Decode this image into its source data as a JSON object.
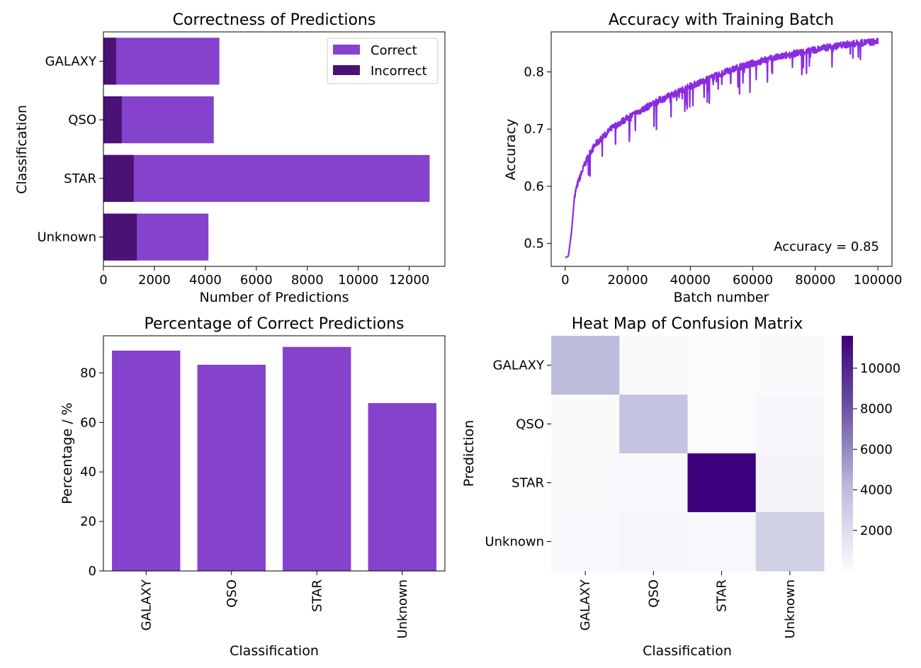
{
  "colors": {
    "correct": "#8542cc",
    "incorrect": "#4b1175",
    "line": "#8a2be2",
    "heat_low": "#fcfbfd",
    "heat_high": "#3f007d"
  },
  "chart_data": [
    {
      "type": "bar",
      "orientation": "horizontal",
      "stacked": "overlay",
      "title": "Correctness of Predictions",
      "xlabel": "Number of Predictions",
      "ylabel": "Classification",
      "categories": [
        "GALAXY",
        "QSO",
        "STAR",
        "Unknown"
      ],
      "series": [
        {
          "name": "Correct",
          "values": [
            4550,
            4330,
            12800,
            4120
          ]
        },
        {
          "name": "Incorrect",
          "values": [
            500,
            720,
            1190,
            1310
          ]
        }
      ],
      "xlim": [
        0,
        13400
      ],
      "xticks": [
        0,
        2000,
        4000,
        6000,
        8000,
        10000,
        12000
      ],
      "legend": "top-right",
      "grid": false
    },
    {
      "type": "line",
      "title": "Accuracy with Training Batch",
      "xlabel": "Batch number",
      "ylabel": "Accuracy",
      "x": [
        0,
        1000,
        2000,
        3000,
        4000,
        6000,
        8000,
        10000,
        15000,
        20000,
        25000,
        30000,
        35000,
        40000,
        45000,
        50000,
        55000,
        60000,
        65000,
        70000,
        75000,
        80000,
        85000,
        90000,
        95000,
        100000
      ],
      "y": [
        0.475,
        0.478,
        0.52,
        0.585,
        0.605,
        0.635,
        0.66,
        0.675,
        0.702,
        0.72,
        0.735,
        0.75,
        0.762,
        0.775,
        0.786,
        0.797,
        0.807,
        0.815,
        0.822,
        0.828,
        0.834,
        0.839,
        0.844,
        0.848,
        0.851,
        0.853
      ],
      "xlim": [
        -4500,
        104500
      ],
      "ylim": [
        0.46,
        0.87
      ],
      "xticks": [
        0,
        20000,
        40000,
        60000,
        80000,
        100000
      ],
      "yticks": [
        0.5,
        0.6,
        0.7,
        0.8
      ],
      "annotation": "Accuracy = 0.85",
      "grid": false
    },
    {
      "type": "bar",
      "title": "Percentage of Correct Predictions",
      "xlabel": "Classification",
      "ylabel": "Percentage / %",
      "categories": [
        "GALAXY",
        "QSO",
        "STAR",
        "Unknown"
      ],
      "values": [
        89.0,
        83.3,
        90.5,
        67.8
      ],
      "ylim": [
        0,
        95
      ],
      "yticks": [
        0,
        20,
        40,
        60,
        80
      ],
      "grid": false
    },
    {
      "type": "heatmap",
      "title": "Heat Map of Confusion Matrix",
      "xlabel": "Classification",
      "ylabel": "Prediction",
      "x_categories": [
        "GALAXY",
        "QSO",
        "STAR",
        "Unknown"
      ],
      "y_categories": [
        "GALAXY",
        "QSO",
        "STAR",
        "Unknown"
      ],
      "matrix": [
        [
          4050,
          150,
          80,
          120
        ],
        [
          120,
          3620,
          80,
          330
        ],
        [
          200,
          180,
          11600,
          480
        ],
        [
          180,
          380,
          230,
          2800
        ]
      ],
      "colorbar_range": [
        0,
        11600
      ],
      "colorbar_ticks": [
        2000,
        4000,
        6000,
        8000,
        10000
      ],
      "grid": false
    }
  ]
}
